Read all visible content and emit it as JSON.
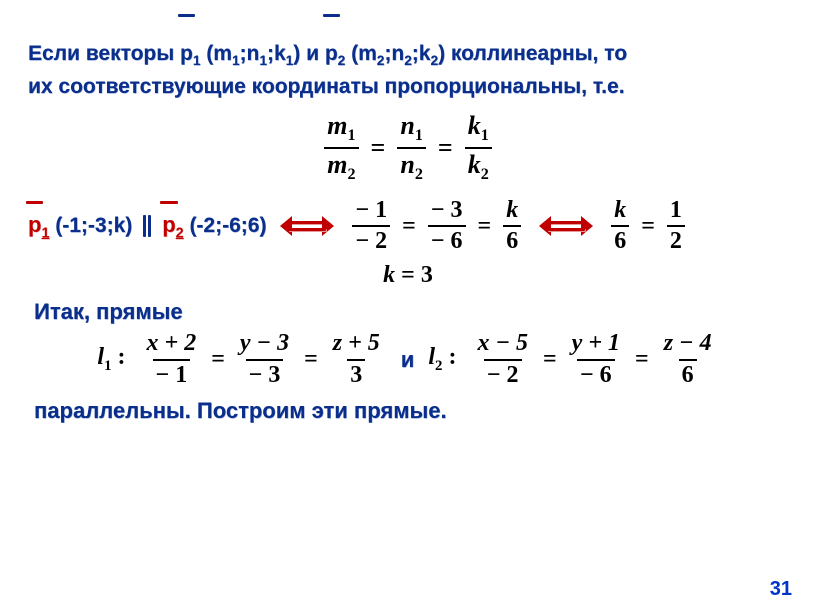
{
  "colors": {
    "blue": "#0a2e8a",
    "red": "#c00000",
    "black": "#000000",
    "pagenum": "#0033cc",
    "bg": "#ffffff"
  },
  "para1": {
    "w1": "Если векторы ",
    "p1": "p",
    "p1s": "1",
    "coords1_open": " (m",
    "m1s": "1",
    "n1_pre": ";n",
    "n1s": "1",
    "k1_pre": ";k",
    "k1s": "1",
    "close1": ")",
    "and": " и ",
    "p2": "p",
    "p2s": "2",
    "coords2_open": " (m",
    "m2s": "2",
    "n2_pre": ";n",
    "n2s": "2",
    "k2_pre": ";k",
    "k2s": "2",
    "close2": ")",
    "coll": " коллинеарны, то",
    "line2": "их соответствующие координаты пропорциональны, т.е."
  },
  "formula_ratio": {
    "m1": "m",
    "m1s": "1",
    "m2": "m",
    "m2s": "2",
    "n1": "n",
    "n1s": "1",
    "n2": "n",
    "n2s": "2",
    "k1": "k",
    "k1s": "1",
    "k2": "k",
    "k2s": "2",
    "eq": "="
  },
  "row2": {
    "p1": "p",
    "p1s": "1",
    "p1coords": " (-1;-3;k) ",
    "p2": "p",
    "p2s": "2",
    "p2coords": " (-2;-6;6)",
    "f1_n1": "− 1",
    "f1_d1": "− 2",
    "f1_n2": "− 3",
    "f1_d2": "− 6",
    "f1_n3": "k",
    "f1_d3": "6",
    "f2_n1": "k",
    "f2_d1": "6",
    "f2_n2": "1",
    "f2_d2": "2",
    "eq": "="
  },
  "k_result": {
    "k": "k",
    "eq": " = ",
    "val": "3"
  },
  "itak": "Итак, прямые",
  "lines": {
    "l1": "l",
    "l1s": "1",
    "colon": " :",
    "x2": "x + 2",
    "m1": "− 1",
    "y3": "y − 3",
    "m3": "− 3",
    "z5": "z + 5",
    "p3": "3",
    "and": "и",
    "l2": "l",
    "l2s": "2",
    "x5": "x − 5",
    "m2": "− 2",
    "y1": "y + 1",
    "m6": "− 6",
    "z4": "z − 4",
    "p6": "6",
    "eq": "="
  },
  "final": "параллельны. Построим эти прямые.",
  "pagenum": "31"
}
